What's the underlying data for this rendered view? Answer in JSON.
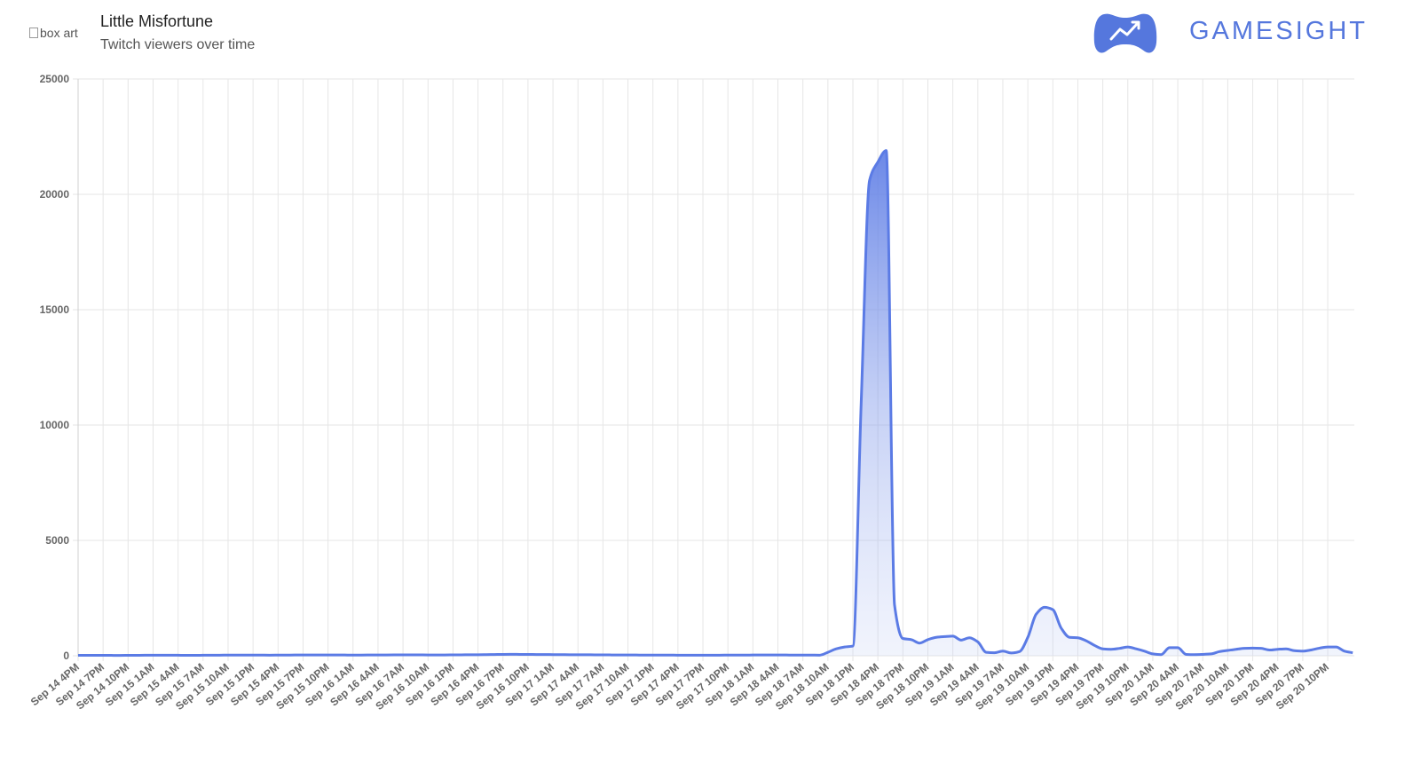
{
  "header": {
    "image_alt": "box art",
    "title": "Little Misfortune",
    "subtitle": "Twitch viewers over time",
    "brand": "GAMESIGHT"
  },
  "chart_data": {
    "type": "area",
    "color": "#5b7be5",
    "grid": true,
    "ylim": [
      0,
      25000
    ],
    "yticks": [
      0,
      5000,
      10000,
      15000,
      20000,
      25000
    ],
    "categories": [
      "Sep 14 4PM",
      null,
      null,
      "Sep 14 7PM",
      null,
      null,
      "Sep 14 10PM",
      null,
      null,
      "Sep 15 1AM",
      null,
      null,
      "Sep 15 4AM",
      null,
      null,
      "Sep 15 7AM",
      null,
      null,
      "Sep 15 10AM",
      null,
      null,
      "Sep 15 1PM",
      null,
      null,
      "Sep 15 4PM",
      null,
      null,
      "Sep 15 7PM",
      null,
      null,
      "Sep 15 10PM",
      null,
      null,
      "Sep 16 1AM",
      null,
      null,
      "Sep 16 4AM",
      null,
      null,
      "Sep 16 7AM",
      null,
      null,
      "Sep 16 10AM",
      null,
      null,
      "Sep 16 1PM",
      null,
      null,
      "Sep 16 4PM",
      null,
      null,
      "Sep 16 7PM",
      null,
      null,
      "Sep 16 10PM",
      null,
      null,
      "Sep 17 1AM",
      null,
      null,
      "Sep 17 4AM",
      null,
      null,
      "Sep 17 7AM",
      null,
      null,
      "Sep 17 10AM",
      null,
      null,
      "Sep 17 1PM",
      null,
      null,
      "Sep 17 4PM",
      null,
      null,
      "Sep 17 7PM",
      null,
      null,
      "Sep 17 10PM",
      null,
      null,
      "Sep 18 1AM",
      null,
      null,
      "Sep 18 4AM",
      null,
      null,
      "Sep 18 7AM",
      null,
      null,
      "Sep 18 10AM",
      null,
      null,
      "Sep 18 1PM",
      null,
      null,
      "Sep 18 4PM",
      null,
      null,
      "Sep 18 7PM",
      null,
      null,
      "Sep 18 10PM",
      null,
      null,
      "Sep 19 1AM",
      null,
      null,
      "Sep 19 4AM",
      null,
      null,
      "Sep 19 7AM",
      null,
      null,
      "Sep 19 10AM",
      null,
      null,
      "Sep 19 1PM",
      null,
      null,
      "Sep 19 4PM",
      null,
      null,
      "Sep 19 7PM",
      null,
      null,
      "Sep 19 10PM",
      null,
      null,
      "Sep 20 1AM",
      null,
      null,
      "Sep 20 4AM",
      null,
      null,
      "Sep 20 7AM",
      null,
      null,
      "Sep 20 10AM",
      null,
      null,
      "Sep 20 1PM",
      null,
      null,
      "Sep 20 4PM",
      null,
      null,
      "Sep 20 7PM",
      null,
      null,
      "Sep 20 10PM",
      null,
      null,
      null
    ],
    "values": [
      20,
      20,
      18,
      18,
      17,
      16,
      18,
      20,
      22,
      25,
      25,
      24,
      22,
      20,
      20,
      22,
      24,
      26,
      28,
      30,
      30,
      28,
      27,
      26,
      28,
      30,
      32,
      34,
      35,
      36,
      35,
      34,
      32,
      30,
      30,
      32,
      34,
      36,
      38,
      40,
      40,
      38,
      36,
      35,
      36,
      38,
      40,
      42,
      45,
      50,
      55,
      60,
      62,
      60,
      58,
      55,
      52,
      50,
      48,
      45,
      44,
      42,
      40,
      38,
      36,
      35,
      34,
      32,
      30,
      30,
      28,
      27,
      26,
      25,
      24,
      24,
      25,
      26,
      28,
      30,
      30,
      32,
      34,
      35,
      34,
      32,
      30,
      30,
      28,
      25,
      150,
      300,
      380,
      420,
      11000,
      20600,
      21400,
      21900,
      2200,
      750,
      700,
      550,
      700,
      800,
      830,
      850,
      680,
      780,
      600,
      150,
      130,
      200,
      120,
      180,
      800,
      1800,
      2100,
      2000,
      1200,
      800,
      780,
      650,
      450,
      300,
      280,
      320,
      380,
      300,
      200,
      80,
      50,
      350,
      350,
      60,
      50,
      60,
      80,
      180,
      230,
      280,
      320,
      330,
      320,
      250,
      280,
      300,
      220,
      200,
      250,
      330,
      380,
      380,
      200,
      130
    ]
  }
}
